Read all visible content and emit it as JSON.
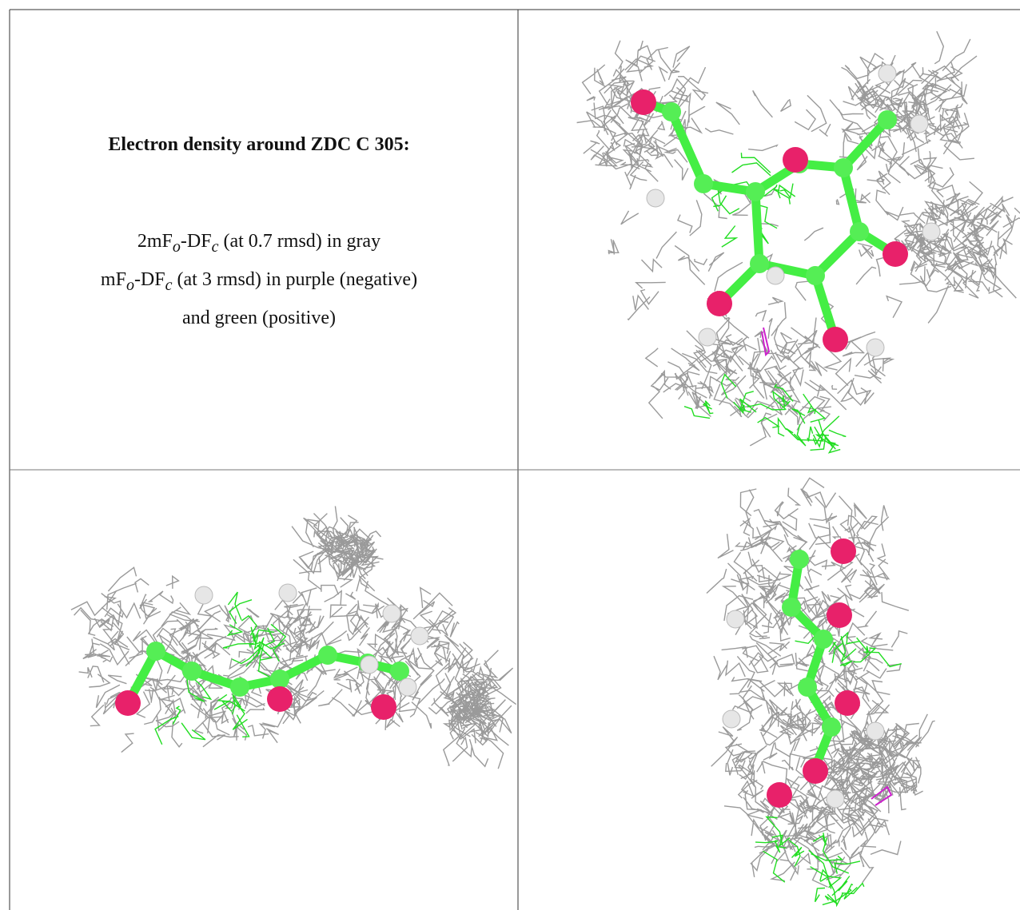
{
  "caption": {
    "title": "Electron density around ZDC C 305:",
    "lines": [
      [
        "2mF",
        "o",
        "-DF",
        "c",
        " (at 0.7 rmsd) in gray"
      ],
      [
        "mF",
        "o",
        "-DF",
        "c",
        " (at 3 rmsd) in purple (negative)"
      ],
      [
        "and green (positive)"
      ]
    ]
  }
}
